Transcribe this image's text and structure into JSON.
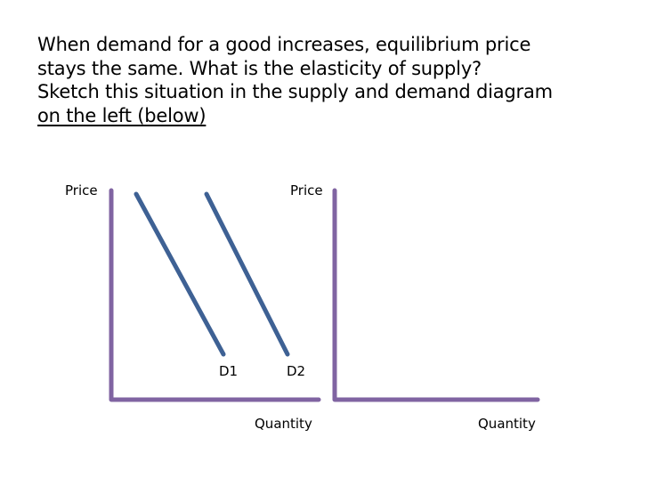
{
  "question": {
    "lines": [
      "When demand for a good increases, equilibrium price",
      "stays the same. What is the elasticity of supply?",
      "Sketch this situation in the supply and demand diagram",
      "on the left (below)"
    ]
  },
  "left_diagram": {
    "y_axis_label": "Price",
    "x_axis_label": "Quantity",
    "curves": [
      {
        "label": "D1"
      },
      {
        "label": "D2"
      }
    ]
  },
  "right_diagram": {
    "y_axis_label": "Price",
    "x_axis_label": "Quantity"
  },
  "colors": {
    "axis": "#8064A2",
    "curve": "#3E6194"
  }
}
